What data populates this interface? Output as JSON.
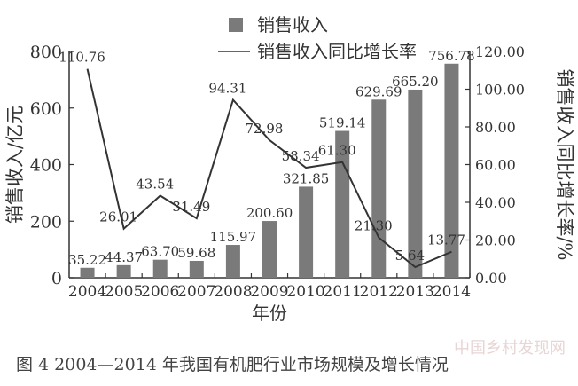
{
  "figure": {
    "caption": "图 4    2004—2014 年我国有机肥行业市场规模及增长情况",
    "watermark": "中国乡村发现网"
  },
  "chart_data": {
    "type": "bar",
    "categories": [
      "2004",
      "2005",
      "2006",
      "2007",
      "2008",
      "2009",
      "2010",
      "2011",
      "2012",
      "2013",
      "2014"
    ],
    "xlabel": "年份",
    "ylabel": "销售收入/亿元",
    "y2label": "销售收入同比增长率/%",
    "ylim": [
      0,
      800
    ],
    "y2lim": [
      0,
      120
    ],
    "yticks": [
      "0",
      "200",
      "400",
      "600",
      "800"
    ],
    "y2ticks": [
      "0.00",
      "20.00",
      "40.00",
      "60.00",
      "80.00",
      "100.00",
      "120.00"
    ],
    "legend": {
      "position": "top-center"
    },
    "grid": false,
    "series": [
      {
        "name": "销售收入",
        "type": "bar",
        "axis": "left",
        "color": "#7a7a7a",
        "values": [
          35.22,
          44.37,
          63.7,
          59.68,
          115.97,
          200.6,
          321.85,
          519.14,
          629.69,
          665.2,
          756.78
        ],
        "labels": [
          "35.22",
          "44.37",
          "63.70",
          "59.68",
          "115.97",
          "200.60",
          "321.85",
          "519.14",
          "629.69",
          "665.20",
          "756.78"
        ]
      },
      {
        "name": "销售收入同比增长率",
        "type": "line",
        "axis": "right",
        "color": "#333333",
        "values": [
          110.76,
          26.01,
          43.54,
          31.49,
          94.31,
          72.98,
          58.34,
          61.3,
          21.3,
          5.64,
          13.77
        ],
        "labels": [
          "110.76",
          "26.01",
          "43.54",
          "31.49",
          "94.31",
          "72.98",
          "58.34",
          "61.30",
          "21.30",
          "5.64",
          "13.77"
        ]
      }
    ]
  }
}
